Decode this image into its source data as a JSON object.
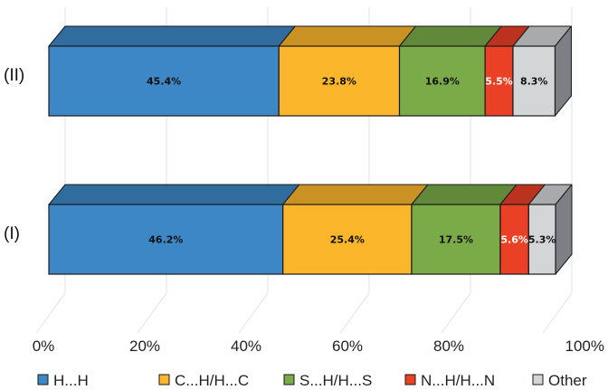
{
  "chart_data": {
    "type": "bar",
    "stacked": true,
    "orientation": "horizontal",
    "style": "3d",
    "categories": [
      "(II)",
      "(I)"
    ],
    "series": [
      {
        "name": "H...H",
        "color": "#3d87c6",
        "values": [
          45.4,
          46.2
        ],
        "labels": [
          "45.4%",
          "46.2%"
        ]
      },
      {
        "name": "C...H/H...C",
        "color": "#fbb62c",
        "values": [
          23.8,
          25.4
        ],
        "labels": [
          "23.8%",
          "25.4%"
        ]
      },
      {
        "name": "S...H/H...S",
        "color": "#7aab48",
        "values": [
          16.9,
          17.5
        ],
        "labels": [
          "16.9%",
          "17.5%"
        ]
      },
      {
        "name": "N...H/H...N",
        "color": "#ea4026",
        "values": [
          5.5,
          5.6
        ],
        "labels": [
          "5.5%",
          "5.6%"
        ]
      },
      {
        "name": "Other",
        "color": "#d3d5d7",
        "values": [
          8.3,
          5.3
        ],
        "labels": [
          "8.3%",
          "5.3%"
        ]
      }
    ],
    "xlim": [
      0,
      100
    ],
    "xticks": [
      "0%",
      "20%",
      "40%",
      "60%",
      "80%",
      "100%"
    ],
    "grid": true,
    "legend_position": "bottom"
  }
}
